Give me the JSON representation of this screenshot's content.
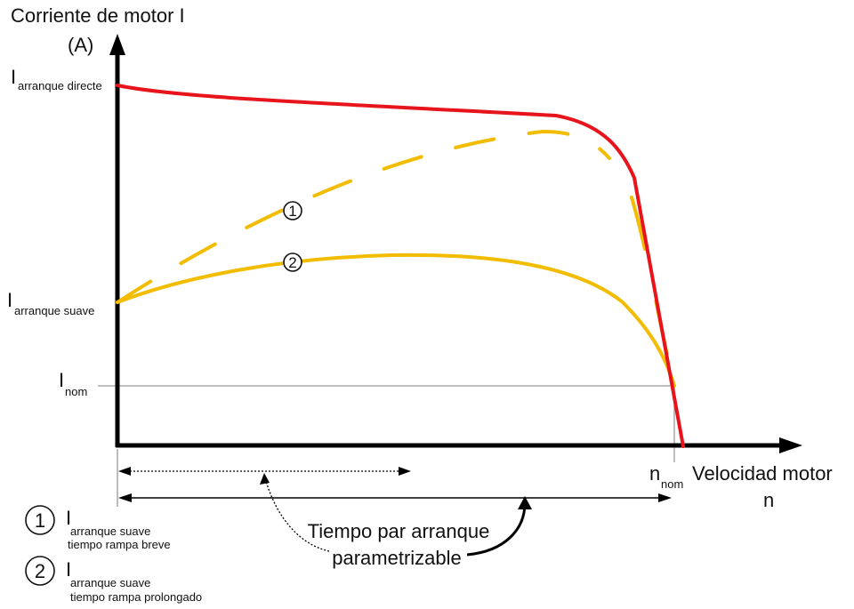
{
  "axes": {
    "y_title_line1": "Corriente de motor I",
    "y_title_line2": "(A)",
    "x_title_line1": "Velocidad motor",
    "x_title_line2": "n"
  },
  "y_labels": {
    "direct_main": "I",
    "direct_sub": "arranque directe",
    "soft_main": "I",
    "soft_sub": "arranque suave",
    "nom_main": "I",
    "nom_sub": "nom"
  },
  "x_labels": {
    "nnom_main": "n",
    "nnom_sub": "nom"
  },
  "curve_markers": {
    "one": "1",
    "two": "2"
  },
  "annotation": {
    "line1": "Tiempo par arranque",
    "line2": "parametrizable"
  },
  "legend": [
    {
      "num": "1",
      "main": "I",
      "sub1": "arranque suave",
      "sub2": "tiempo rampa breve"
    },
    {
      "num": "2",
      "main": "I",
      "sub1": "arranque suave",
      "sub2": "tiempo rampa prolongado"
    }
  ],
  "colors": {
    "direct_curve": "#e8141b",
    "soft_curves": "#f2bc00",
    "axis": "#000000",
    "guide": "#999999"
  }
}
